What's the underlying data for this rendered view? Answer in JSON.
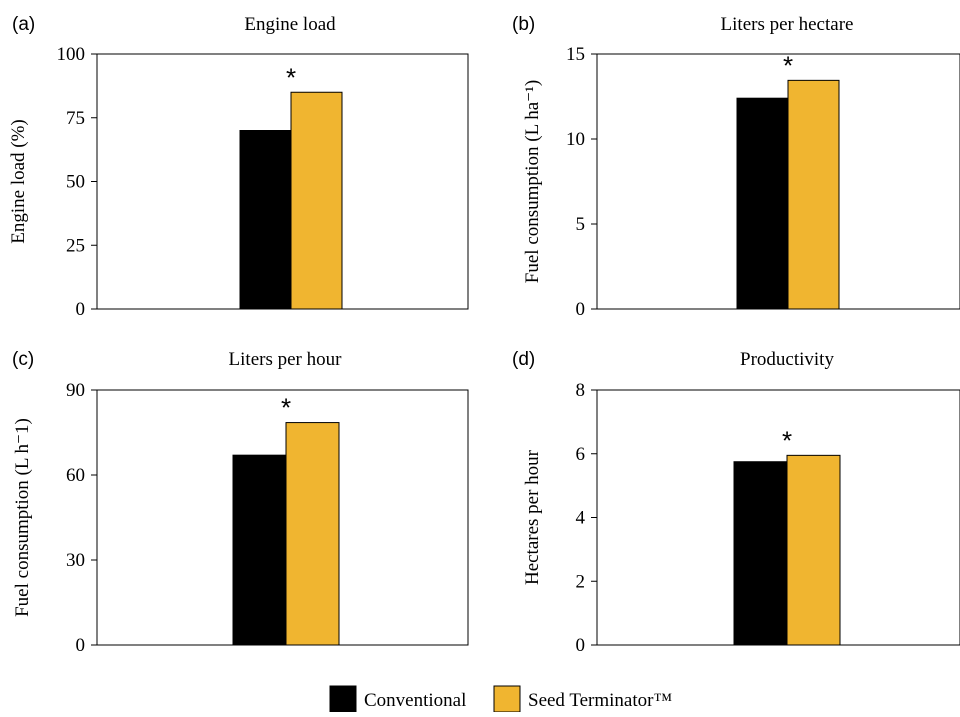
{
  "chart_data": [
    {
      "type": "bar",
      "panel": "(a)",
      "title": "Engine load",
      "ylabel": "Engine load (%)",
      "ylim": [
        0,
        100
      ],
      "yticks": [
        "0",
        "25",
        "50",
        "75",
        "100"
      ],
      "series": [
        {
          "name": "Conventional",
          "values": [
            70
          ]
        },
        {
          "name": "Seed Terminator™",
          "values": [
            85
          ]
        }
      ],
      "annotation": "*"
    },
    {
      "type": "bar",
      "panel": "(b)",
      "title": "Liters per hectare",
      "ylabel": "Fuel consumption (L ha⁻¹)",
      "ylim": [
        0,
        15
      ],
      "yticks": [
        "0",
        "5",
        "10",
        "15"
      ],
      "series": [
        {
          "name": "Conventional",
          "values": [
            12.4
          ]
        },
        {
          "name": "Seed Terminator™",
          "values": [
            13.45
          ]
        }
      ],
      "annotation": "*"
    },
    {
      "type": "bar",
      "panel": "(c)",
      "title": "Liters per hour",
      "ylabel": "Fuel consumption (L h⁻1)",
      "ylim": [
        0,
        90
      ],
      "yticks": [
        "0",
        "30",
        "60",
        "90"
      ],
      "series": [
        {
          "name": "Conventional",
          "values": [
            67
          ]
        },
        {
          "name": "Seed Terminator™",
          "values": [
            78.5
          ]
        }
      ],
      "annotation": "*"
    },
    {
      "type": "bar",
      "panel": "(d)",
      "title": "Productivity",
      "ylabel": "Hectares per hour",
      "ylim": [
        0,
        8
      ],
      "yticks": [
        "0",
        "2",
        "4",
        "6",
        "8"
      ],
      "series": [
        {
          "name": "Conventional",
          "values": [
            5.75
          ]
        },
        {
          "name": "Seed Terminator™",
          "values": [
            5.95
          ]
        }
      ],
      "annotation": "*"
    }
  ],
  "legend": {
    "items": [
      {
        "label": "Conventional",
        "color": "#000000"
      },
      {
        "label": "Seed Terminator™",
        "color": "#f0b530"
      }
    ]
  },
  "colors": {
    "conventional": "#000000",
    "seed_terminator": "#f0b530"
  }
}
